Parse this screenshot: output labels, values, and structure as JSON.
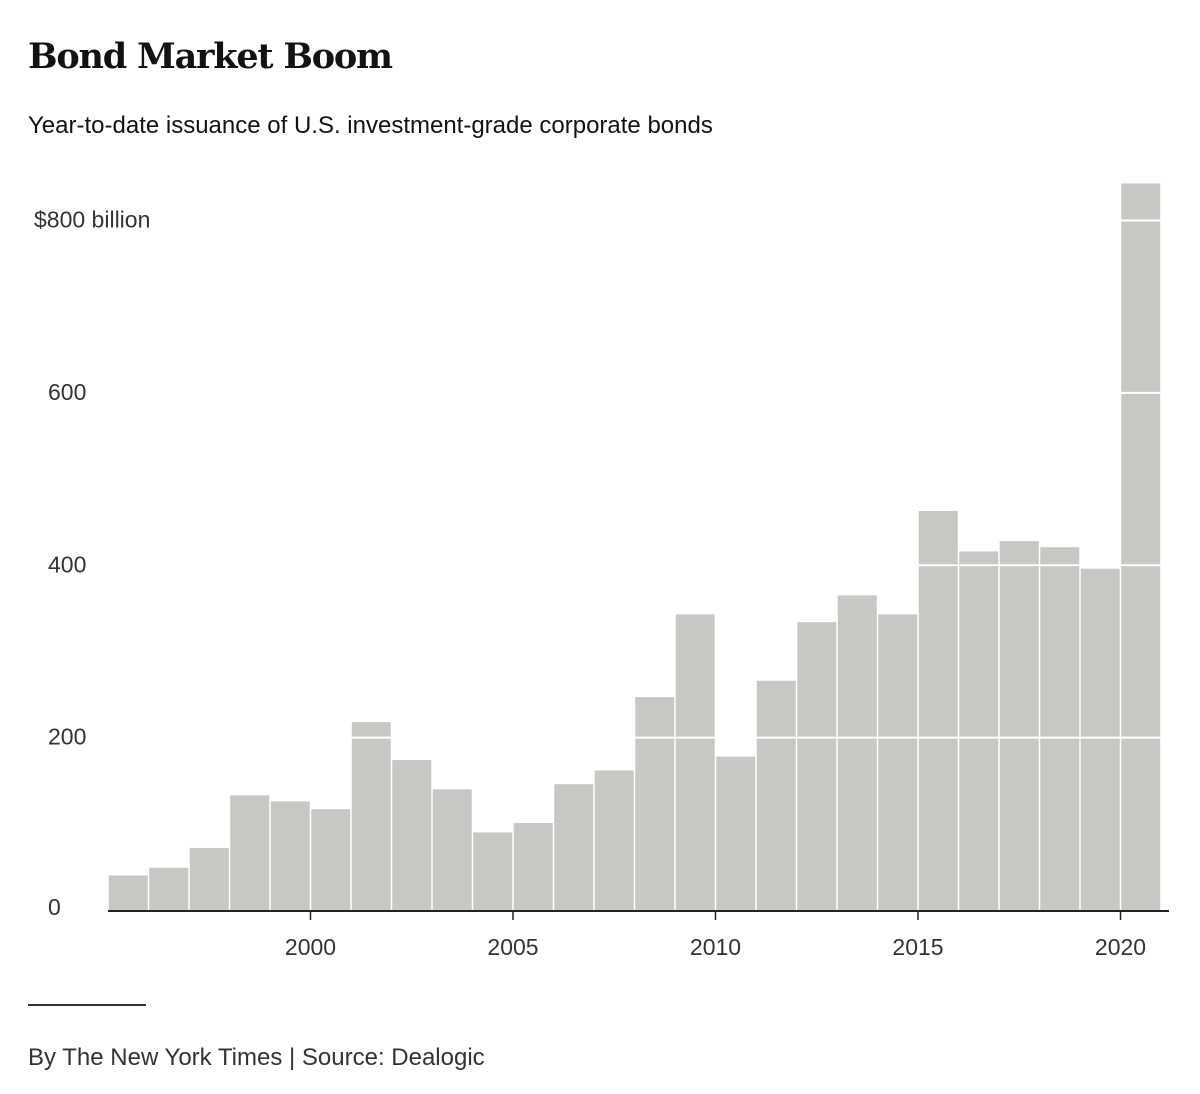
{
  "header": {
    "title": "Bond Market Boom",
    "subtitle": "Year-to-date issuance of U.S. investment-grade corporate bonds"
  },
  "footer": {
    "credit": "By The New York Times | Source: Dealogic"
  },
  "colors": {
    "bar": "#c8c7c3",
    "gridline": "#ffffff",
    "axis": "#222222",
    "text": "#121212"
  },
  "chart_data": {
    "type": "bar",
    "title": "Bond Market Boom",
    "subtitle": "Year-to-date issuance of U.S. investment-grade corporate bonds",
    "xlabel": "",
    "ylabel": "",
    "unit": "$ billion",
    "ylim": [
      0,
      850
    ],
    "y_ticks": [
      0,
      200,
      400,
      600,
      800
    ],
    "y_tick_labels": [
      "0",
      "200",
      "400",
      "600",
      "$800 billion"
    ],
    "x_ticks": [
      2000,
      2005,
      2010,
      2015,
      2020
    ],
    "x_tick_labels": [
      "2000",
      "2005",
      "2010",
      "2015",
      "2020"
    ],
    "grid": true,
    "categories": [
      1995,
      1996,
      1997,
      1998,
      1999,
      2000,
      2001,
      2002,
      2003,
      2004,
      2005,
      2006,
      2007,
      2008,
      2009,
      2010,
      2011,
      2012,
      2013,
      2014,
      2015,
      2016,
      2017,
      2018,
      2019,
      2020
    ],
    "values": [
      40,
      49,
      72,
      133,
      126,
      117,
      218,
      174,
      140,
      90,
      101,
      146,
      162,
      247,
      343,
      178,
      266,
      334,
      365,
      343,
      463,
      416,
      428,
      421,
      396,
      843
    ]
  }
}
